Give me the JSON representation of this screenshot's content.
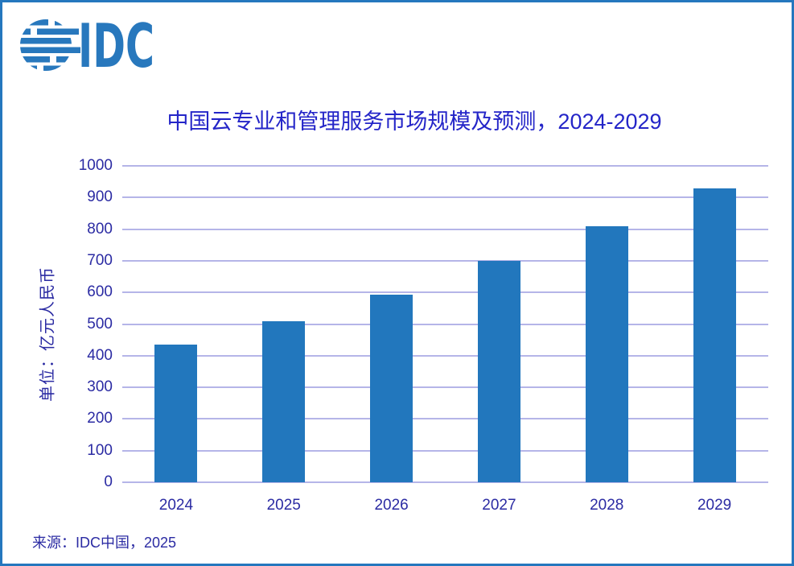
{
  "logo": {
    "text": "IDC",
    "color": "#2878BD"
  },
  "chart_data": {
    "type": "bar",
    "title": "中国云专业和管理服务市场规模及预测，2024-2029",
    "categories": [
      "2024",
      "2025",
      "2026",
      "2027",
      "2028",
      "2029"
    ],
    "values": [
      435,
      510,
      593,
      701,
      809,
      928
    ],
    "xlabel": "",
    "ylabel": "单位：亿元人民币",
    "ylim": [
      0,
      1000
    ],
    "ytick_step": 100,
    "grid": true,
    "legend": "none",
    "bar_color": "#2277BD",
    "grid_color": "#B5B5E8",
    "title_color": "#2425C8",
    "axis_text_color": "#2B2BA3",
    "border_color": "#2577BE"
  },
  "source": {
    "label": "来源：IDC中国，2025"
  }
}
